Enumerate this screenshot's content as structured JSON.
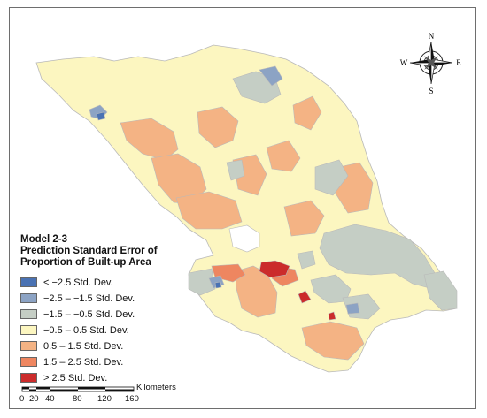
{
  "legend": {
    "title_line1": "Model 2-3",
    "title_line2": "Prediction Standard Error of",
    "title_line3": "Proportion of Built-up Area",
    "classes": [
      {
        "label": "< −2.5 Std. Dev.",
        "color": "#4a72b3"
      },
      {
        "label": "−2.5 – −1.5 Std. Dev.",
        "color": "#8ca3c4"
      },
      {
        "label": "−1.5 – −0.5 Std. Dev.",
        "color": "#c5cec5"
      },
      {
        "label": "−0.5 – 0.5 Std. Dev.",
        "color": "#fcf6c0"
      },
      {
        "label": "0.5 – 1.5 Std. Dev.",
        "color": "#f4b384"
      },
      {
        "label": "1.5 – 2.5 Std. Dev.",
        "color": "#ee8660"
      },
      {
        "label": "> 2.5 Std. Dev.",
        "color": "#cb2b2b"
      }
    ]
  },
  "scale_bar": {
    "unit": "Kilometers",
    "ticks": [
      "0",
      "20",
      "40",
      "80",
      "120",
      "160"
    ]
  },
  "north_arrow": {
    "n": "N",
    "s": "S",
    "e": "E",
    "w": "W"
  }
}
